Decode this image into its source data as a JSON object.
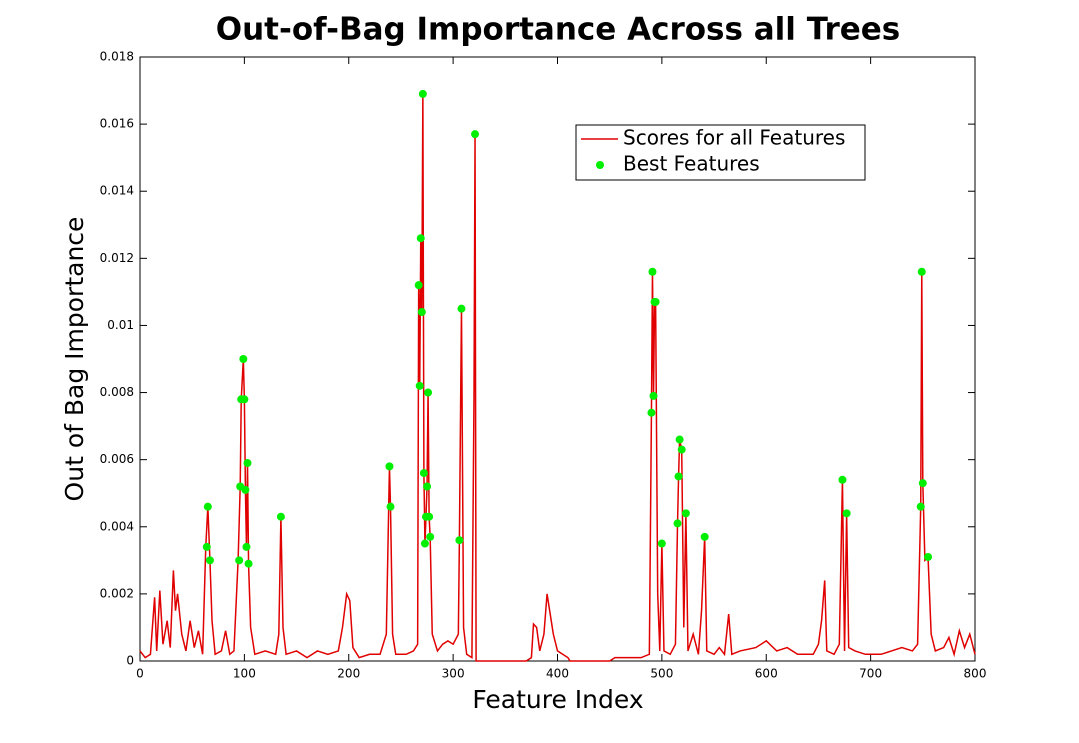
{
  "chart_data": {
    "type": "line",
    "title": "Out-of-Bag Importance Across all Trees",
    "x_label": "Feature Index",
    "y_label": "Out of Bag Importance",
    "xlim": [
      0,
      800
    ],
    "xticks": [
      0,
      100,
      200,
      300,
      400,
      500,
      600,
      700,
      800
    ],
    "ylim": [
      0,
      0.018
    ],
    "yticks": [
      0,
      0.002,
      0.004,
      0.006,
      0.008,
      0.01,
      0.012,
      0.014,
      0.016,
      0.018
    ],
    "legend": "upper right",
    "series": [
      {
        "name": "Scores for all Features",
        "color": "#e00000",
        "type": "line",
        "x": [
          0,
          5,
          10,
          14,
          16,
          19,
          22,
          26,
          29,
          32,
          34,
          36,
          40,
          44,
          48,
          52,
          56,
          60,
          63,
          65,
          67,
          69,
          72,
          78,
          82,
          86,
          90,
          94,
          96,
          97,
          99,
          100,
          101,
          102,
          103,
          104,
          106,
          110,
          120,
          130,
          133,
          135,
          137,
          140,
          150,
          160,
          170,
          180,
          190,
          194,
          198,
          201,
          204,
          210,
          220,
          230,
          236,
          239,
          240,
          242,
          245,
          255,
          262,
          266,
          267,
          268,
          269,
          270,
          271,
          272,
          273,
          274,
          275,
          276,
          277,
          278,
          280,
          285,
          290,
          295,
          300,
          305,
          306,
          308,
          310,
          313,
          318,
          320,
          321,
          322,
          330,
          350,
          370,
          375,
          377,
          380,
          383,
          387,
          390,
          393,
          396,
          400,
          410,
          412,
          450,
          455,
          470,
          480,
          488,
          490,
          491,
          492,
          493,
          494,
          496,
          498,
          500,
          502,
          508,
          513,
          515,
          516,
          517,
          519,
          521,
          523,
          525,
          530,
          535,
          538,
          541,
          543,
          550,
          555,
          560,
          564,
          567,
          575,
          590,
          600,
          610,
          620,
          630,
          645,
          650,
          653,
          656,
          658,
          665,
          670,
          673,
          675,
          677,
          679,
          685,
          695,
          710,
          720,
          730,
          740,
          745,
          748,
          749,
          750,
          752,
          755,
          758,
          762,
          770,
          775,
          780,
          785,
          790,
          795,
          800
        ],
        "values": [
          0.0003,
          0.0001,
          0.0002,
          0.0019,
          0.0003,
          0.0021,
          0.0005,
          0.0012,
          0.0004,
          0.0027,
          0.0015,
          0.002,
          0.0008,
          0.0003,
          0.0012,
          0.0004,
          0.0009,
          0.0002,
          0.0034,
          0.0046,
          0.003,
          0.0012,
          0.0002,
          0.0003,
          0.0009,
          0.0002,
          0.0003,
          0.003,
          0.0052,
          0.0078,
          0.009,
          0.0078,
          0.0051,
          0.0034,
          0.0059,
          0.0029,
          0.001,
          0.0002,
          0.0003,
          0.0002,
          0.0008,
          0.0043,
          0.001,
          0.0002,
          0.0003,
          0.0001,
          0.0003,
          0.0002,
          0.0003,
          0.001,
          0.002,
          0.0018,
          0.0004,
          0.0001,
          0.0002,
          0.0002,
          0.0008,
          0.0058,
          0.0046,
          0.0008,
          0.0002,
          0.0002,
          0.0003,
          0.0005,
          0.0112,
          0.0082,
          0.0126,
          0.0104,
          0.0169,
          0.0056,
          0.0035,
          0.0043,
          0.0052,
          0.008,
          0.0043,
          0.0037,
          0.0008,
          0.0003,
          0.0005,
          0.0006,
          0.0005,
          0.0008,
          0.0036,
          0.0105,
          0.001,
          0.0002,
          0.0001,
          0.0079,
          0.0157,
          0,
          0,
          0,
          0,
          0.0001,
          0.0011,
          0.001,
          0.0003,
          0.0008,
          0.002,
          0.0014,
          0.0008,
          0.0003,
          0.0001,
          0,
          0,
          0.0001,
          0.0001,
          0.0001,
          0.0002,
          0.0074,
          0.0116,
          0.0079,
          0.0107,
          0.0107,
          0.002,
          0.0003,
          0.0035,
          0.0003,
          0.0002,
          0.0005,
          0.0041,
          0.0055,
          0.0066,
          0.0063,
          0.001,
          0.0044,
          0.0003,
          0.0008,
          0.0002,
          0.0015,
          0.0037,
          0.0003,
          0.0002,
          0.0004,
          0.0002,
          0.0014,
          0.0002,
          0.0003,
          0.0004,
          0.0006,
          0.0003,
          0.0004,
          0.0002,
          0.0002,
          0.0005,
          0.0012,
          0.0024,
          0.0003,
          0.0002,
          0.0005,
          0.0054,
          0.0003,
          0.0044,
          0.0004,
          0.0003,
          0.0002,
          0.0002,
          0.0003,
          0.0004,
          0.0003,
          0.0005,
          0.0046,
          0.0116,
          0.0053,
          0.003,
          0.0031,
          0.0008,
          0.0003,
          0.0004,
          0.0007,
          0.0002,
          0.0009,
          0.0004,
          0.0008,
          0.0002
        ]
      },
      {
        "name": "Best Features",
        "color": "#00ee00",
        "type": "scatter",
        "x": [
          64,
          65,
          67,
          95,
          96,
          97,
          99,
          100,
          101,
          102,
          103,
          104,
          135,
          239,
          240,
          267,
          268,
          269,
          270,
          271,
          272,
          273,
          274,
          275,
          276,
          277,
          278,
          306,
          308,
          321,
          490,
          491,
          492,
          493,
          494,
          500,
          515,
          516,
          517,
          519,
          523,
          541,
          673,
          677,
          748,
          749,
          750,
          755
        ],
        "values": [
          0.0034,
          0.0046,
          0.003,
          0.003,
          0.0052,
          0.0078,
          0.009,
          0.0078,
          0.0051,
          0.0034,
          0.0059,
          0.0029,
          0.0043,
          0.0058,
          0.0046,
          0.0112,
          0.0082,
          0.0126,
          0.0104,
          0.0169,
          0.0056,
          0.0035,
          0.0043,
          0.0052,
          0.008,
          0.0043,
          0.0037,
          0.0036,
          0.0105,
          0.0157,
          0.0074,
          0.0116,
          0.0079,
          0.0107,
          0.0107,
          0.0035,
          0.0041,
          0.0055,
          0.0066,
          0.0063,
          0.0044,
          0.0037,
          0.0054,
          0.0044,
          0.0046,
          0.0116,
          0.0053,
          0.0031
        ]
      }
    ]
  }
}
